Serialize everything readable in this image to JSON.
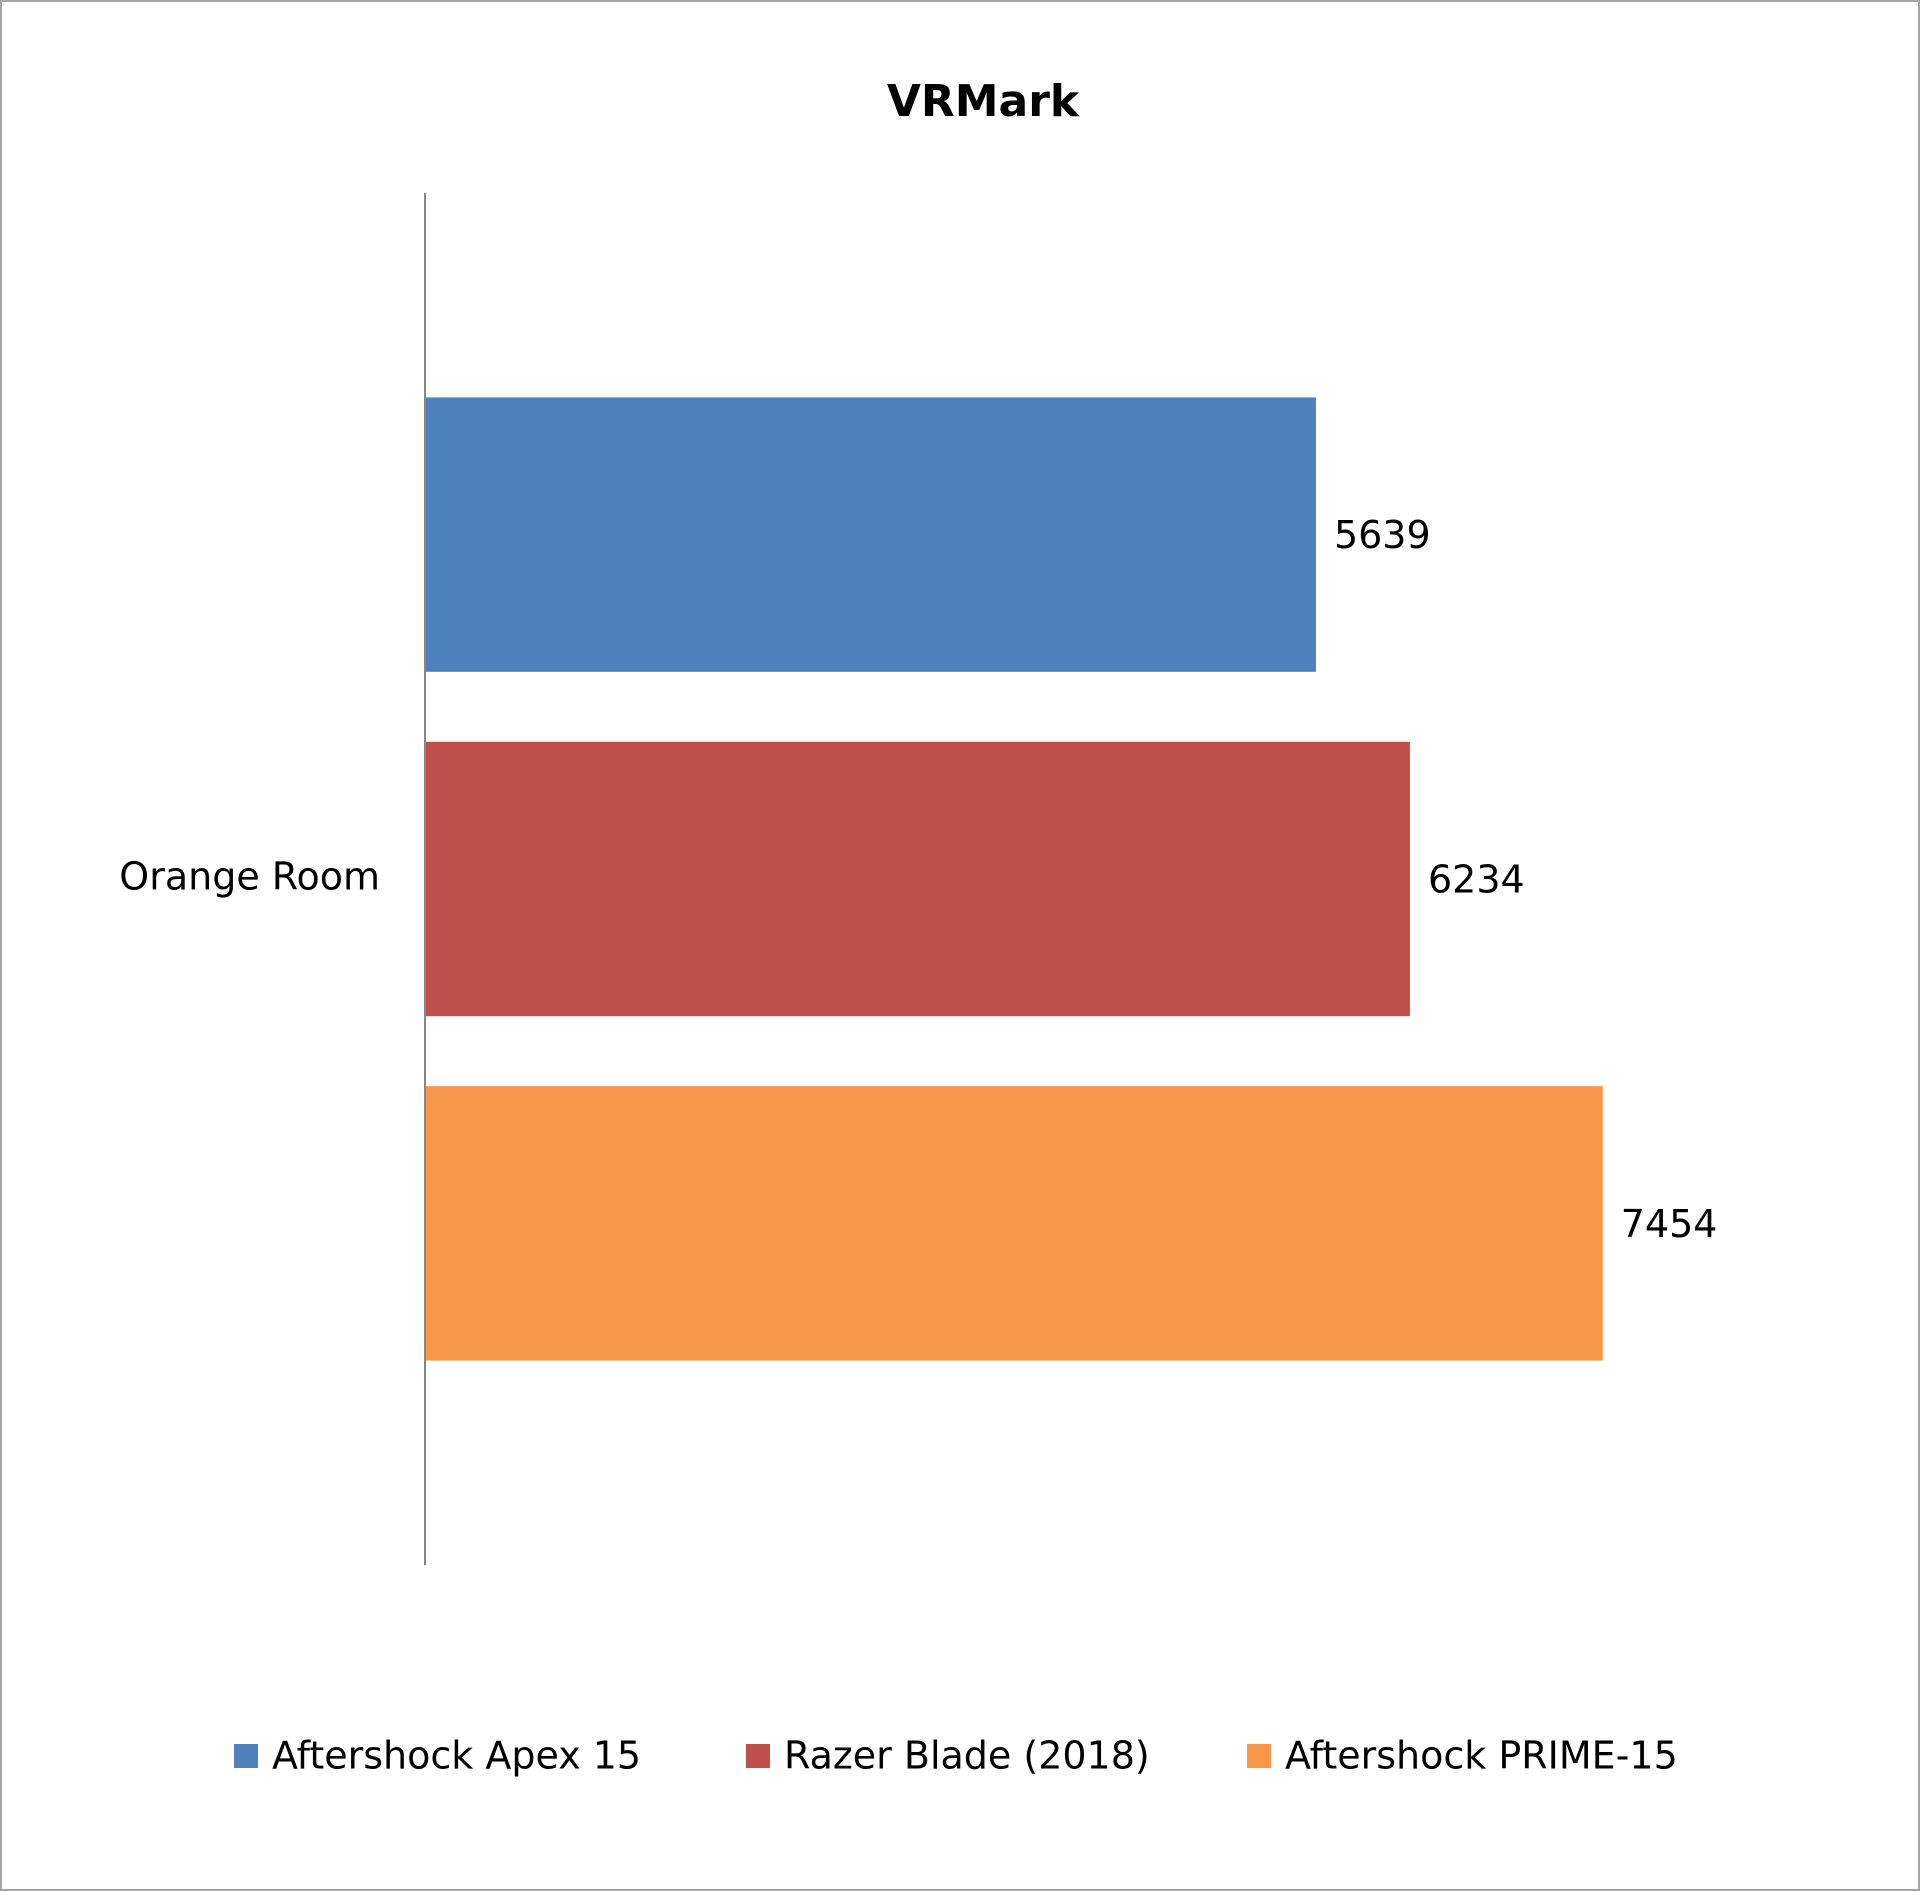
{
  "chart_data": {
    "type": "bar",
    "orientation": "horizontal",
    "title": "VRMark",
    "categories": [
      "Orange Room"
    ],
    "series": [
      {
        "name": "Aftershock Apex 15",
        "color": "#4f81bd",
        "values": [
          5639
        ]
      },
      {
        "name": "Razer Blade (2018)",
        "color": "#c0504d",
        "values": [
          6234
        ]
      },
      {
        "name": "Aftershock PRIME-15",
        "color": "#f79646",
        "values": [
          7454
        ]
      }
    ],
    "xlim": [
      0,
      9000
    ],
    "legend": "bottom"
  }
}
